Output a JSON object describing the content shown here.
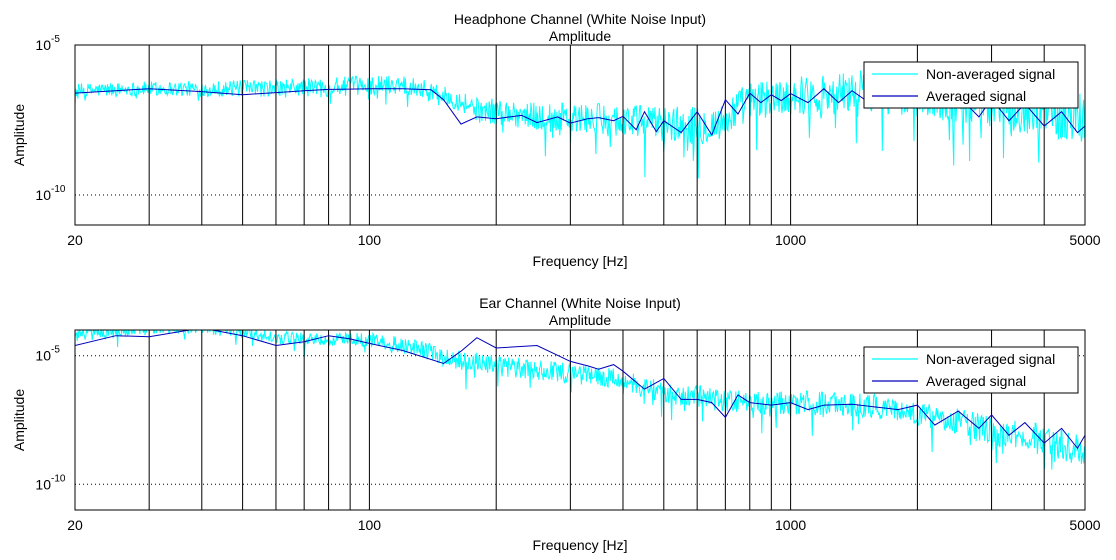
{
  "figure": {
    "colors": {
      "raw": "#00ffff",
      "avg": "#0000bb",
      "axis": "#000000",
      "background": "#ffffff"
    }
  },
  "chart_data": [
    {
      "type": "line",
      "title": "Headphone Channel (White Noise Input)",
      "subtitle": "Amplitude",
      "xlabel": "Frequency [Hz]",
      "ylabel": "Amplitude",
      "xscale": "log",
      "yscale": "log",
      "xlim": [
        20,
        5000
      ],
      "ylim": [
        1e-11,
        1e-05
      ],
      "xticks": [
        {
          "value": 20,
          "label": "20"
        },
        {
          "value": 100,
          "label": "100"
        },
        {
          "value": 1000,
          "label": "1000"
        },
        {
          "value": 5000,
          "label": "5000"
        }
      ],
      "yticks": [
        {
          "value": 1e-10,
          "label": "10",
          "exp": "-10"
        },
        {
          "value": 1e-05,
          "label": "10",
          "exp": "-5"
        }
      ],
      "x_gridlines": [
        30,
        40,
        50,
        60,
        70,
        80,
        90,
        100,
        200,
        300,
        400,
        500,
        600,
        700,
        800,
        900,
        1000,
        2000,
        3000,
        4000
      ],
      "legend": {
        "position": "top-right"
      },
      "series": [
        {
          "name": "Non-averaged signal",
          "kind": "noise",
          "color": "#00ffff",
          "envelope": {
            "x": [
              20,
              30,
              50,
              80,
              120,
              150,
              180,
              250,
              400,
              600,
              700,
              800,
              1000,
              1500,
              2500,
              4000,
              5000
            ],
            "center": [
              3e-07,
              3.5e-07,
              3.5e-07,
              4e-07,
              5e-07,
              2e-07,
              7e-08,
              4e-08,
              3e-08,
              2e-08,
              2.5e-08,
              1.3e-07,
              2e-07,
              3e-07,
              1.5e-07,
              6e-08,
              4e-08
            ],
            "spread_decades": [
              0.3,
              0.3,
              0.35,
              0.4,
              0.4,
              0.4,
              0.5,
              0.6,
              0.7,
              0.8,
              0.8,
              0.8,
              0.8,
              0.9,
              1.0,
              1.1,
              1.1
            ]
          }
        },
        {
          "name": "Averaged signal",
          "kind": "line",
          "color": "#0000bb",
          "x": [
            20,
            30,
            40,
            50,
            60,
            70,
            80,
            90,
            100,
            120,
            140,
            150,
            165,
            180,
            200,
            230,
            250,
            280,
            300,
            330,
            350,
            380,
            400,
            430,
            450,
            480,
            500,
            550,
            600,
            650,
            700,
            750,
            800,
            850,
            900,
            950,
            1000,
            1100,
            1200,
            1300,
            1400,
            1500,
            1700,
            1900,
            2100,
            2300,
            2500,
            2800,
            3000,
            3300,
            3600,
            4000,
            4400,
            4800,
            5000
          ],
          "y": [
            2.5e-07,
            3.5e-07,
            2.8e-07,
            2.2e-07,
            2.6e-07,
            3e-07,
            3.3e-07,
            3.4e-07,
            3.5e-07,
            3.5e-07,
            3.2e-07,
            1.5e-07,
            2.3e-08,
            4e-08,
            3.5e-08,
            4.5e-08,
            2.6e-08,
            4e-08,
            2.5e-08,
            3.5e-08,
            3.8e-08,
            3e-08,
            4.2e-08,
            1.5e-08,
            6e-08,
            1.3e-08,
            3e-08,
            1.2e-08,
            6e-08,
            1e-08,
            1.5e-07,
            5e-08,
            2.5e-07,
            1.2e-07,
            2.2e-07,
            1.4e-07,
            2.4e-07,
            1.2e-07,
            3.5e-07,
            1.2e-07,
            3e-07,
            1.5e-07,
            4e-07,
            1.3e-07,
            3.5e-07,
            8e-08,
            2e-07,
            4e-08,
            1.6e-07,
            3e-08,
            1.1e-07,
            2e-08,
            6e-08,
            1.2e-08,
            2e-08
          ]
        }
      ]
    },
    {
      "type": "line",
      "title": "Ear Channel (White Noise Input)",
      "subtitle": "Amplitude",
      "xlabel": "Frequency [Hz]",
      "ylabel": "Amplitude",
      "xscale": "log",
      "yscale": "log",
      "xlim": [
        20,
        5000
      ],
      "ylim": [
        1e-11,
        0.0001
      ],
      "xticks": [
        {
          "value": 20,
          "label": "20"
        },
        {
          "value": 100,
          "label": "100"
        },
        {
          "value": 1000,
          "label": "1000"
        },
        {
          "value": 5000,
          "label": "5000"
        }
      ],
      "yticks": [
        {
          "value": 1e-10,
          "label": "10",
          "exp": "-10"
        },
        {
          "value": 1e-05,
          "label": "10",
          "exp": "-5"
        }
      ],
      "x_gridlines": [
        30,
        40,
        50,
        60,
        70,
        80,
        90,
        100,
        200,
        300,
        400,
        500,
        600,
        700,
        800,
        900,
        1000,
        2000,
        3000,
        4000
      ],
      "legend": {
        "position": "top-right"
      },
      "series": [
        {
          "name": "Non-averaged signal",
          "kind": "noise",
          "color": "#00ffff",
          "envelope": {
            "x": [
              20,
              30,
              40,
              60,
              100,
              150,
              200,
              300,
              500,
              800,
              1000,
              1500,
              2000,
              3000,
              5000
            ],
            "center": [
              6e-05,
              0.00012,
              0.00012,
              5e-05,
              4e-05,
              8e-06,
              4e-06,
              2e-06,
              3e-07,
              1.5e-07,
              1.5e-07,
              1.2e-07,
              5e-08,
              1e-08,
              1.5e-09
            ],
            "spread_decades": [
              0.35,
              0.3,
              0.3,
              0.3,
              0.35,
              0.45,
              0.5,
              0.5,
              0.55,
              0.6,
              0.6,
              0.6,
              0.6,
              0.7,
              0.8
            ]
          }
        },
        {
          "name": "Averaged signal",
          "kind": "line",
          "color": "#0000bb",
          "x": [
            20,
            25,
            30,
            40,
            50,
            60,
            70,
            80,
            90,
            100,
            120,
            150,
            165,
            180,
            200,
            250,
            300,
            330,
            350,
            380,
            400,
            450,
            500,
            550,
            600,
            650,
            700,
            750,
            800,
            900,
            1000,
            1100,
            1200,
            1400,
            1600,
            1800,
            2000,
            2200,
            2500,
            2800,
            3000,
            3300,
            3600,
            4000,
            4400,
            4800,
            5000
          ],
          "y": [
            2.5e-05,
            6e-05,
            5.5e-05,
            0.00012,
            6e-05,
            2.5e-05,
            3.5e-05,
            6e-05,
            4.5e-05,
            3e-05,
            1.6e-05,
            5e-06,
            1.5e-05,
            5e-05,
            2e-05,
            2.5e-05,
            6e-06,
            4e-06,
            3e-06,
            4.5e-06,
            2.5e-06,
            5e-07,
            1.3e-06,
            2e-07,
            2e-07,
            1.5e-07,
            4e-08,
            3e-07,
            1.5e-07,
            1.2e-07,
            1.5e-07,
            8e-08,
            1.2e-07,
            1.3e-07,
            1e-07,
            8e-08,
            1.2e-07,
            2e-08,
            7e-08,
            1.5e-08,
            5e-08,
            8e-09,
            2.5e-08,
            4e-09,
            1.5e-08,
            2.5e-09,
            8e-09
          ]
        }
      ]
    }
  ]
}
